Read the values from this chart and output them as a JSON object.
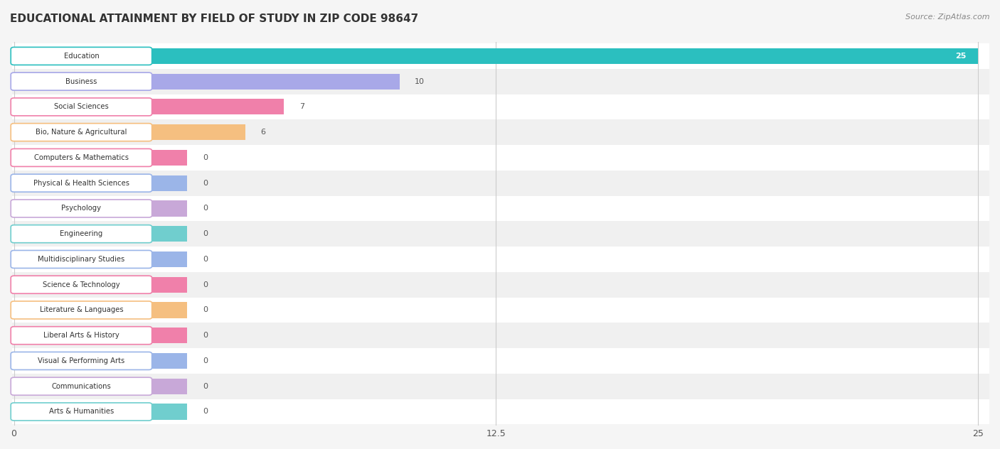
{
  "title": "EDUCATIONAL ATTAINMENT BY FIELD OF STUDY IN ZIP CODE 98647",
  "source": "Source: ZipAtlas.com",
  "categories": [
    "Education",
    "Business",
    "Social Sciences",
    "Bio, Nature & Agricultural",
    "Computers & Mathematics",
    "Physical & Health Sciences",
    "Psychology",
    "Engineering",
    "Multidisciplinary Studies",
    "Science & Technology",
    "Literature & Languages",
    "Liberal Arts & History",
    "Visual & Performing Arts",
    "Communications",
    "Arts & Humanities"
  ],
  "values": [
    25,
    10,
    7,
    6,
    0,
    0,
    0,
    0,
    0,
    0,
    0,
    0,
    0,
    0,
    0
  ],
  "bar_colors": [
    "#2BBFBF",
    "#A8A8E8",
    "#F080AA",
    "#F5BF80",
    "#F080AA",
    "#9BB5E8",
    "#C8A8D8",
    "#70CECE",
    "#9BB5E8",
    "#F080AA",
    "#F5BF80",
    "#F080AA",
    "#9BB5E8",
    "#C8A8D8",
    "#70CECE"
  ],
  "xlim": [
    0,
    25
  ],
  "xticks": [
    0,
    12.5,
    25
  ],
  "background_color": "#f5f5f5",
  "title_fontsize": 11,
  "source_fontsize": 8,
  "bar_height": 0.62,
  "min_bar_display": 4.5
}
